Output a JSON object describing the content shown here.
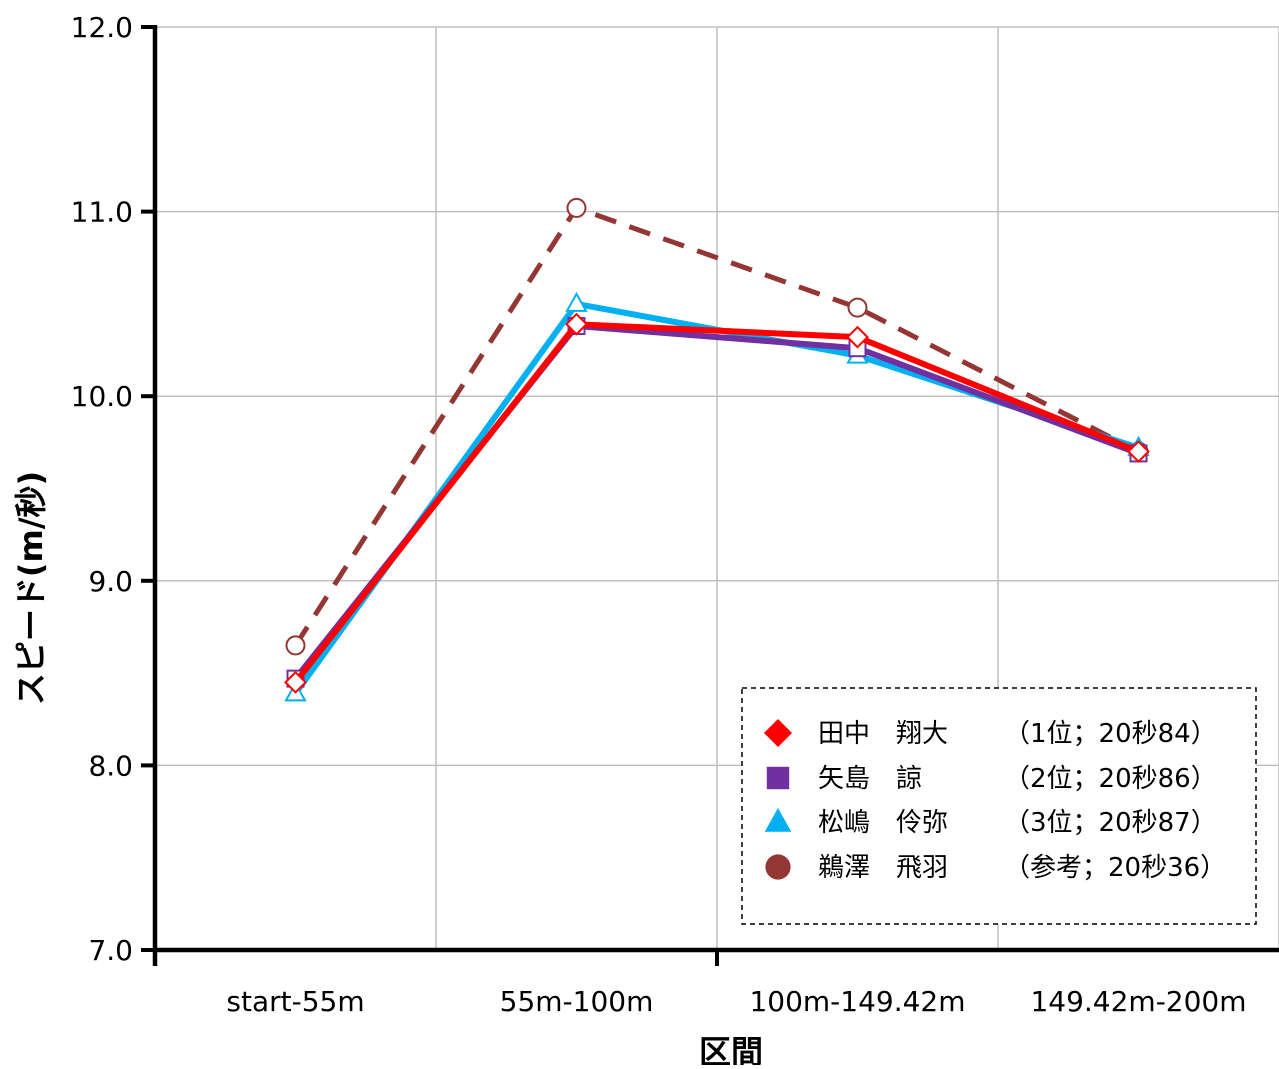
{
  "chart_data": {
    "type": "line",
    "title": "",
    "xlabel": "区間",
    "ylabel": "スピード(m/秒)",
    "ylim": [
      7.0,
      12.0
    ],
    "yticks": [
      "7.0",
      "8.0",
      "9.0",
      "10.0",
      "11.0",
      "12.0"
    ],
    "categories": [
      "start-55m",
      "55m-100m",
      "100m-149.42m",
      "149.42m-200m"
    ],
    "grid": true,
    "legend_position": "bottom-right",
    "series": [
      {
        "name": "田中　翔大",
        "note": "（1位；20秒84）",
        "values": [
          8.45,
          10.39,
          10.32,
          9.7
        ],
        "color": "#ff0000",
        "marker": "diamond",
        "line_style": "solid"
      },
      {
        "name": "矢島　諒",
        "note": "（2位；20秒86）",
        "values": [
          8.47,
          10.38,
          10.26,
          9.69
        ],
        "color": "#7030a0",
        "marker": "square",
        "line_style": "solid"
      },
      {
        "name": "松嶋　伶弥",
        "note": "（3位；20秒87）",
        "values": [
          8.39,
          10.5,
          10.22,
          9.72
        ],
        "color": "#00b0f0",
        "marker": "triangle",
        "line_style": "solid"
      },
      {
        "name": "鵜澤　飛羽",
        "note": "（参考；20秒36）",
        "values": [
          8.65,
          11.02,
          10.48,
          9.7
        ],
        "color": "#943634",
        "marker": "circle",
        "line_style": "dashed"
      }
    ]
  }
}
